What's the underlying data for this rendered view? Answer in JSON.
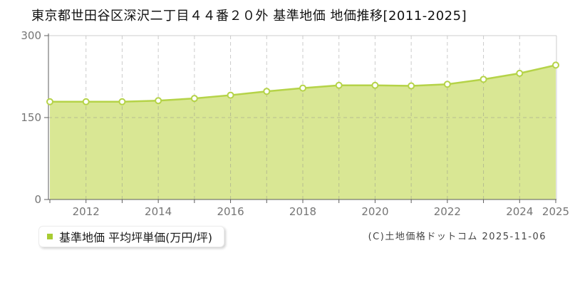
{
  "title": "東京都世田谷区深沢二丁目４４番２０外 基準地価 地価推移[2011-2025]",
  "legend": {
    "label": "基準地価 平均坪単価(万円/坪)",
    "marker_color": "#a8cc33"
  },
  "copyright": "(C)土地価格ドットコム 2025-11-06",
  "chart_data": {
    "type": "area",
    "title": "東京都世田谷区深沢二丁目４４番２０外 基準地価 地価推移[2011-2025]",
    "x": [
      2011,
      2012,
      2013,
      2014,
      2015,
      2016,
      2017,
      2018,
      2019,
      2020,
      2021,
      2022,
      2023,
      2024,
      2025
    ],
    "series": [
      {
        "name": "基準地価 平均坪単価(万円/坪)",
        "values": [
          179,
          179,
          179,
          181,
          185,
          191,
          198,
          204,
          209,
          209,
          208,
          211,
          220,
          231,
          246
        ]
      }
    ],
    "xlabel": "",
    "ylabel": "平均坪単価(万円/坪)",
    "ylim": [
      0,
      300
    ],
    "yticks": [
      0,
      150,
      300
    ],
    "xtick_label_years": [
      2012,
      2014,
      2016,
      2018,
      2020,
      2022,
      2024,
      2025
    ],
    "grid": "dashed vertical per year, dashed horizontal at 150",
    "legend_position": "bottom-left",
    "marker": "circle-open",
    "colors": {
      "line": "#b5d348",
      "fill": "#d9e794",
      "marker_fill": "#ffffff",
      "grid": "#8c8c8c",
      "axis": "#5c5c5c",
      "border": "#cccccc",
      "tick_label": "#757575",
      "title_text": "#111111"
    }
  }
}
